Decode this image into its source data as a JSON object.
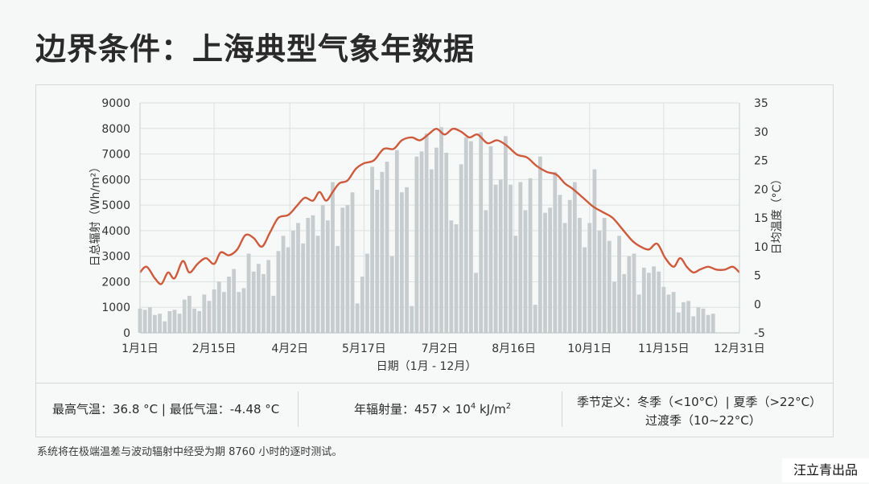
{
  "page": {
    "title": "边界条件：上海典型气象年数据",
    "footnote": "系统将在极端温差与波动辐射中经受为期 8760 小时的逐时测试。",
    "watermark": "汪立青出品"
  },
  "stats": {
    "temp_extremes": "最高气温：36.8 °C | 最低气温：-4.48 °C",
    "annual_radiation_prefix": "年辐射量：457 × 10",
    "annual_radiation_sup": "4",
    "annual_radiation_suffix": " kJ/m",
    "annual_radiation_sup2": "2",
    "season_def_line1": "季节定义：冬季（<10°C）| 夏季（>22°C）",
    "season_def_line2": "过渡季（10~22°C）"
  },
  "colors": {
    "bar": "#c7cdcf",
    "line": "#cf5a3c",
    "grid": "#dde1e1",
    "axis_text": "#333333"
  },
  "chart_data": {
    "type": "bar+line",
    "xlabel": "日期（1月 - 12月）",
    "ylabel_left": "日总辐射（Wh/m²）",
    "ylabel_right": "日均温度（°C）",
    "ylim_left": [
      0,
      9000
    ],
    "ylim_right": [
      -5,
      35
    ],
    "yticks_left": [
      0,
      1000,
      2000,
      3000,
      4000,
      5000,
      6000,
      7000,
      8000,
      9000
    ],
    "yticks_right": [
      -5,
      0,
      5,
      10,
      15,
      20,
      25,
      30,
      35
    ],
    "x_tick_days": [
      1,
      46,
      92,
      137,
      183,
      228,
      274,
      319,
      365
    ],
    "x_tick_labels": [
      "1月1日",
      "2月15日",
      "4月2日",
      "5月17日",
      "7月2日",
      "8月16日",
      "10月1日",
      "11月15日",
      "12月31日"
    ],
    "grid": true,
    "bar_series": {
      "name": "日总辐射",
      "interval_days": 3,
      "values": [
        950,
        900,
        1000,
        700,
        750,
        450,
        850,
        900,
        750,
        1300,
        1450,
        950,
        850,
        1500,
        1250,
        1700,
        2000,
        1600,
        2200,
        2500,
        1600,
        1750,
        3100,
        2400,
        2700,
        2300,
        2850,
        1450,
        3200,
        3800,
        3350,
        4000,
        4300,
        3500,
        4500,
        4600,
        3800,
        5000,
        4400,
        5900,
        3400,
        4900,
        5000,
        5500,
        1150,
        2200,
        3100,
        6500,
        5600,
        6300,
        6700,
        3000,
        7150,
        5500,
        5700,
        1050,
        6900,
        7100,
        7800,
        6400,
        7250,
        8050,
        7050,
        4400,
        4250,
        6600,
        7650,
        7500,
        2350,
        7850,
        4800,
        7300,
        5800,
        6000,
        7700,
        5800,
        3800,
        5900,
        4800,
        6050,
        1100,
        6900,
        4700,
        4900,
        6300,
        5400,
        4300,
        5200,
        5900,
        4500,
        3350,
        4300,
        6400,
        4000,
        4500,
        3600,
        2000,
        3800,
        2300,
        3000,
        3100,
        1500,
        2550,
        2350,
        2600,
        2400,
        1800,
        1500,
        1600,
        800,
        1200,
        1250,
        650,
        1000,
        950,
        700,
        750
      ]
    },
    "line_series": {
      "name": "日均温度",
      "points": [
        [
          1,
          5.5
        ],
        [
          5,
          6.5
        ],
        [
          10,
          4.5
        ],
        [
          14,
          3.5
        ],
        [
          18,
          5.5
        ],
        [
          22,
          4.5
        ],
        [
          27,
          7.5
        ],
        [
          31,
          5.5
        ],
        [
          36,
          7.0
        ],
        [
          41,
          8.0
        ],
        [
          46,
          7.0
        ],
        [
          50,
          9.0
        ],
        [
          55,
          8.5
        ],
        [
          60,
          9.5
        ],
        [
          65,
          12.0
        ],
        [
          70,
          11.5
        ],
        [
          75,
          10.0
        ],
        [
          80,
          12.5
        ],
        [
          85,
          15.0
        ],
        [
          91,
          15.5
        ],
        [
          96,
          17.0
        ],
        [
          101,
          18.5
        ],
        [
          106,
          18.0
        ],
        [
          110,
          19.5
        ],
        [
          114,
          18.0
        ],
        [
          118,
          19.5
        ],
        [
          122,
          21.0
        ],
        [
          127,
          21.5
        ],
        [
          132,
          23.5
        ],
        [
          137,
          24.5
        ],
        [
          143,
          25.0
        ],
        [
          149,
          27.0
        ],
        [
          155,
          27.0
        ],
        [
          160,
          28.5
        ],
        [
          166,
          29.0
        ],
        [
          171,
          28.5
        ],
        [
          176,
          29.5
        ],
        [
          181,
          30.5
        ],
        [
          186,
          29.5
        ],
        [
          191,
          30.5
        ],
        [
          196,
          30.0
        ],
        [
          201,
          29.0
        ],
        [
          206,
          29.5
        ],
        [
          212,
          28.0
        ],
        [
          218,
          28.5
        ],
        [
          224,
          27.5
        ],
        [
          230,
          26.0
        ],
        [
          236,
          25.5
        ],
        [
          242,
          24.0
        ],
        [
          248,
          23.0
        ],
        [
          254,
          22.5
        ],
        [
          259,
          21.0
        ],
        [
          264,
          20.0
        ],
        [
          270,
          18.5
        ],
        [
          276,
          17.0
        ],
        [
          282,
          16.0
        ],
        [
          288,
          15.0
        ],
        [
          294,
          13.0
        ],
        [
          300,
          11.0
        ],
        [
          305,
          10.0
        ],
        [
          310,
          9.5
        ],
        [
          315,
          10.5
        ],
        [
          320,
          8.0
        ],
        [
          325,
          6.5
        ],
        [
          329,
          8.0
        ],
        [
          333,
          6.5
        ],
        [
          337,
          5.5
        ],
        [
          341,
          6.0
        ],
        [
          346,
          6.5
        ],
        [
          351,
          6.0
        ],
        [
          356,
          6.0
        ],
        [
          361,
          6.5
        ],
        [
          365,
          5.5
        ]
      ]
    }
  }
}
